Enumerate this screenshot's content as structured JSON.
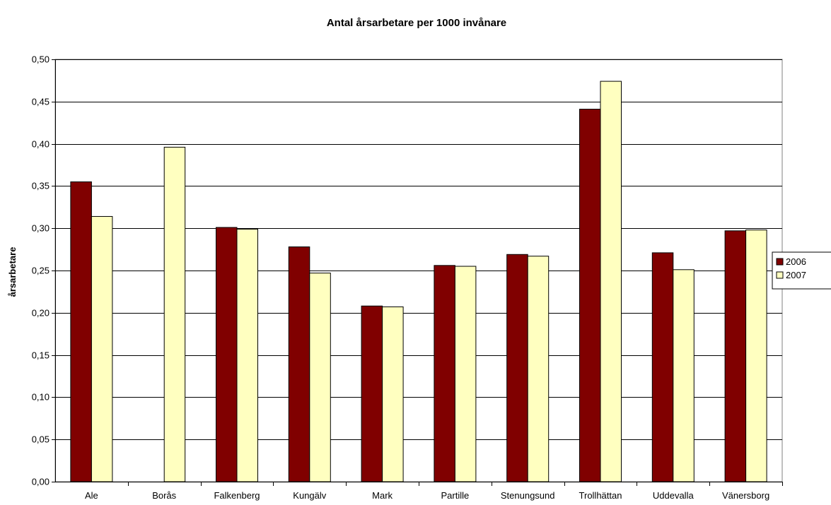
{
  "chart_data": {
    "type": "bar",
    "title": "Antal årsarbetare per 1000 invånare",
    "xlabel": "",
    "ylabel": "årsarbetare",
    "ylim": [
      0,
      0.5
    ],
    "ytick_step": 0.05,
    "yticks": [
      "0,00",
      "0,05",
      "0,10",
      "0,15",
      "0,20",
      "0,25",
      "0,30",
      "0,35",
      "0,40",
      "0,45",
      "0,50"
    ],
    "grid": true,
    "legend_position": "right",
    "categories": [
      "Ale",
      "Borås",
      "Falkenberg",
      "Kungälv",
      "Mark",
      "Partille",
      "Stenungsund",
      "Trollhättan",
      "Uddevalla",
      "Vänersborg"
    ],
    "series": [
      {
        "name": "2006",
        "color": "#800000",
        "values": [
          0.355,
          null,
          0.301,
          0.278,
          0.208,
          0.256,
          0.269,
          0.441,
          0.271,
          0.297
        ]
      },
      {
        "name": "2007",
        "color": "#FFFFC0",
        "values": [
          0.314,
          0.396,
          0.299,
          0.247,
          0.207,
          0.255,
          0.267,
          0.474,
          0.251,
          0.298
        ]
      }
    ]
  }
}
